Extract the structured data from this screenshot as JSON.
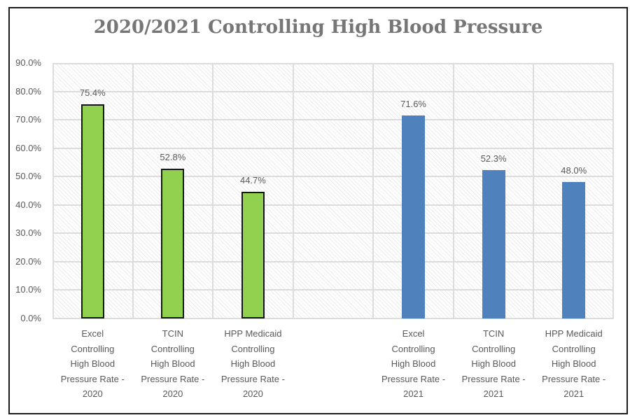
{
  "chart_data": {
    "type": "bar",
    "title": "2020/2021 Controlling High Blood Pressure",
    "xlabel": "",
    "ylabel": "",
    "ylim": [
      0,
      90
    ],
    "ytick_step": 10,
    "ytick_labels": [
      "0.0%",
      "10.0%",
      "20.0%",
      "30.0%",
      "40.0%",
      "50.0%",
      "60.0%",
      "70.0%",
      "80.0%",
      "90.0%"
    ],
    "grid": true,
    "legend": false,
    "plot_bg_pattern": "light-downward-diagonal-hatch",
    "slots": 7,
    "series_colors": {
      "2020": "#92D050",
      "2021": "#4F81BD"
    },
    "bar_border_colors": {
      "2020": "#161616",
      "2021": ""
    },
    "bars": [
      {
        "slot": 0,
        "group": "2020",
        "value": 75.4,
        "data_label": "75.4%",
        "category": "Excel Controlling High Blood Pressure Rate - 2020",
        "category_lines": [
          "Excel",
          "Controlling",
          "High Blood",
          "Pressure Rate -",
          "2020"
        ]
      },
      {
        "slot": 1,
        "group": "2020",
        "value": 52.8,
        "data_label": "52.8%",
        "category": "TCIN Controlling High Blood Pressure Rate - 2020",
        "category_lines": [
          "TCIN",
          "Controlling",
          "High Blood",
          "Pressure Rate -",
          "2020"
        ]
      },
      {
        "slot": 2,
        "group": "2020",
        "value": 44.7,
        "data_label": "44.7%",
        "category": "HPP Medicaid Controlling High Blood Pressure Rate - 2020",
        "category_lines": [
          "HPP Medicaid",
          "Controlling",
          "High Blood",
          "Pressure Rate -",
          "2020"
        ]
      },
      {
        "slot": 4,
        "group": "2021",
        "value": 71.6,
        "data_label": "71.6%",
        "category": "Excel Controlling High Blood Pressure Rate - 2021",
        "category_lines": [
          "Excel",
          "Controlling",
          "High Blood",
          "Pressure Rate -",
          "2021"
        ]
      },
      {
        "slot": 5,
        "group": "2021",
        "value": 52.3,
        "data_label": "52.3%",
        "category": "TCIN Controlling High Blood Pressure Rate - 2021",
        "category_lines": [
          "TCIN",
          "Controlling",
          "High Blood",
          "Pressure Rate -",
          "2021"
        ]
      },
      {
        "slot": 6,
        "group": "2021",
        "value": 48.0,
        "data_label": "48.0%",
        "category": "HPP Medicaid Controlling High Blood Pressure Rate - 2021",
        "category_lines": [
          "HPP Medicaid",
          "Controlling",
          "High Blood",
          "Pressure Rate -",
          "2021"
        ]
      }
    ]
  }
}
